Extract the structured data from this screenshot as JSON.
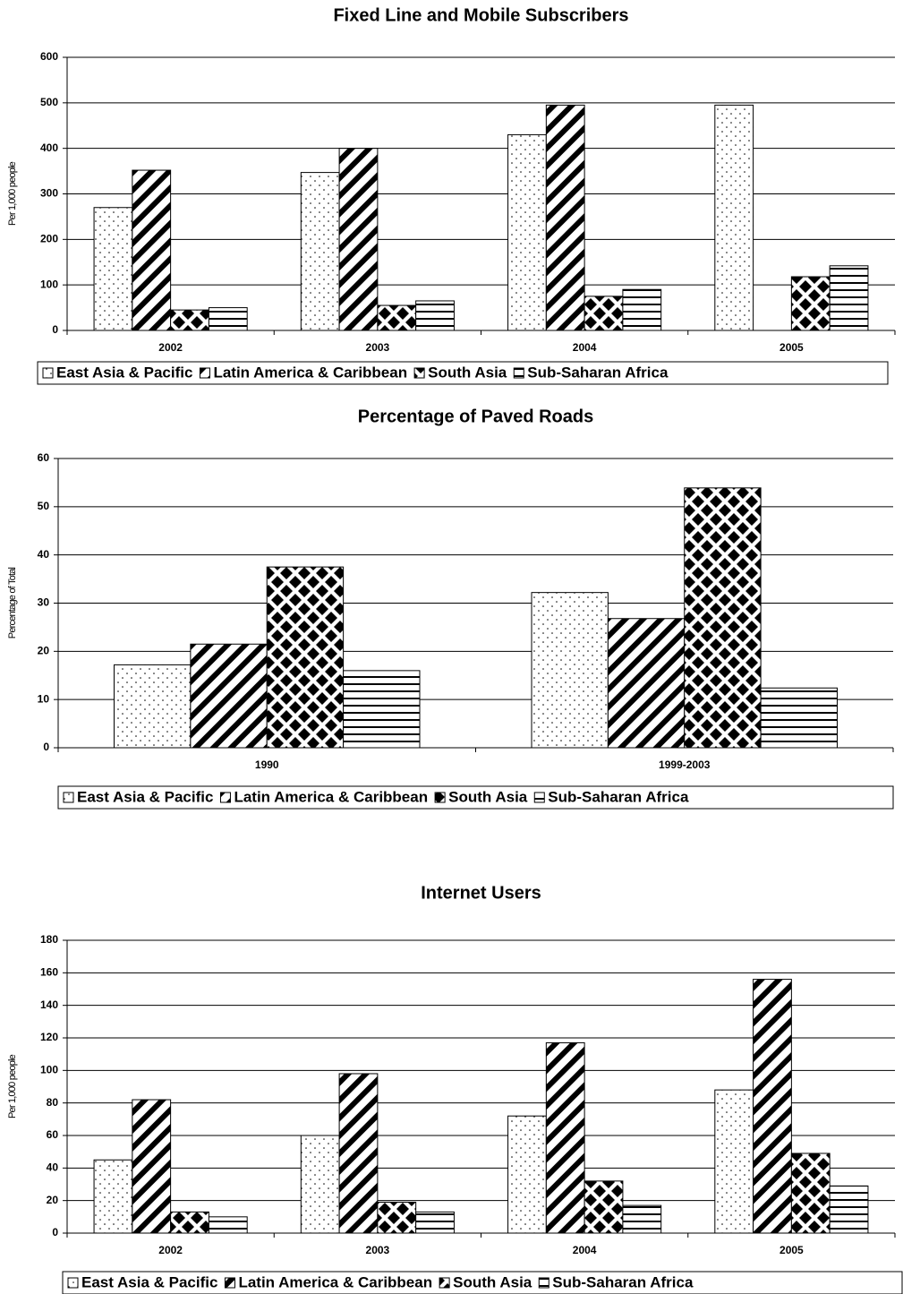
{
  "chart_data": [
    {
      "type": "bar",
      "title": "Fixed Line and Mobile Subscribers",
      "y_label": "Per 1,000 people",
      "categories": [
        "2002",
        "2003",
        "2004",
        "2005"
      ],
      "series": [
        {
          "name": "East Asia & Pacific",
          "color": "#000000",
          "pattern": "dots",
          "values": [
            270,
            347,
            430,
            495
          ]
        },
        {
          "name": "Latin America & Caribbean",
          "color": "#000000",
          "pattern": "diagonal",
          "values": [
            352,
            400,
            495,
            null
          ]
        },
        {
          "name": "South Asia",
          "color": "#000000",
          "pattern": "diamonds",
          "values": [
            45,
            55,
            75,
            118
          ]
        },
        {
          "name": "Sub-Saharan Africa",
          "color": "#000000",
          "pattern": "horizontal",
          "values": [
            50,
            65,
            90,
            142
          ]
        }
      ],
      "ylim": [
        0,
        600
      ],
      "yticks": [
        0,
        100,
        200,
        300,
        400,
        500,
        600
      ],
      "grid": true,
      "legend": "bottom"
    },
    {
      "type": "bar",
      "title": "Percentage of Paved Roads",
      "y_label": "Percentage of Total",
      "categories": [
        "1990",
        "1999-2003"
      ],
      "series": [
        {
          "name": "East Asia & Pacific",
          "color": "#000000",
          "pattern": "dots",
          "values": [
            17.2,
            32.2
          ]
        },
        {
          "name": "Latin America & Caribbean",
          "color": "#000000",
          "pattern": "diagonal",
          "values": [
            21.5,
            26.8
          ]
        },
        {
          "name": "South Asia",
          "color": "#000000",
          "pattern": "diamonds",
          "values": [
            37.5,
            53.9
          ]
        },
        {
          "name": "Sub-Saharan Africa",
          "color": "#000000",
          "pattern": "horizontal",
          "values": [
            16,
            12.4
          ]
        }
      ],
      "ylim": [
        0,
        60
      ],
      "yticks": [
        0,
        10,
        20,
        30,
        40,
        50,
        60
      ],
      "grid": true,
      "legend": "bottom"
    },
    {
      "type": "bar",
      "title": "Internet Users",
      "y_label": "Per 1,000 people",
      "categories": [
        "2002",
        "2003",
        "2004",
        "2005"
      ],
      "series": [
        {
          "name": "East Asia & Pacific",
          "color": "#000000",
          "pattern": "dots",
          "values": [
            45,
            60,
            72,
            88
          ]
        },
        {
          "name": "Latin America & Caribbean",
          "color": "#000000",
          "pattern": "diagonal",
          "values": [
            82,
            98,
            117,
            156
          ]
        },
        {
          "name": "South Asia",
          "color": "#000000",
          "pattern": "diamonds",
          "values": [
            13,
            19,
            32,
            49
          ]
        },
        {
          "name": "Sub-Saharan Africa",
          "color": "#000000",
          "pattern": "horizontal",
          "values": [
            10,
            13,
            17,
            29
          ]
        }
      ],
      "ylim": [
        0,
        180
      ],
      "yticks": [
        0,
        20,
        40,
        60,
        80,
        100,
        120,
        140,
        160,
        180
      ],
      "grid": true,
      "legend": "bottom"
    }
  ]
}
